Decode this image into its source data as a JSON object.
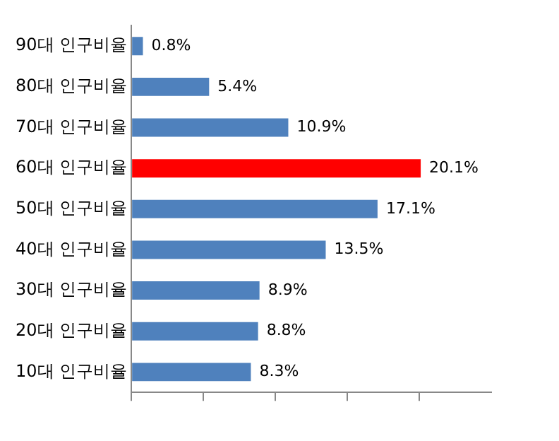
{
  "chart_data": {
    "type": "bar",
    "orientation": "horizontal",
    "categories": [
      "90대 인구비율",
      "80대 인구비율",
      "70대 인구비율",
      "60대 인구비율",
      "50대 인구비율",
      "40대 인구비율",
      "30대 인구비율",
      "20대 인구비율",
      "10대 인구비율"
    ],
    "values": [
      0.8,
      5.4,
      10.9,
      20.1,
      17.1,
      13.5,
      8.9,
      8.8,
      8.3
    ],
    "colors": [
      "#4f81bd",
      "#4f81bd",
      "#4f81bd",
      "#ff0000",
      "#4f81bd",
      "#4f81bd",
      "#4f81bd",
      "#4f81bd",
      "#4f81bd"
    ],
    "value_labels": [
      "0.8%",
      "5.4%",
      "10.9%",
      "20.1%",
      "17.1%",
      "13.5%",
      "8.9%",
      "8.8%",
      "8.3%"
    ],
    "xlim": [
      0,
      25
    ],
    "xticks": [
      {
        "value": 0,
        "label": null
      },
      {
        "value": 5,
        "label": null
      },
      {
        "value": 10,
        "label": null
      },
      {
        "value": 15,
        "label": null
      },
      {
        "value": 20,
        "label": null
      }
    ],
    "tick_labels": "y",
    "grid": false,
    "legend": false
  }
}
